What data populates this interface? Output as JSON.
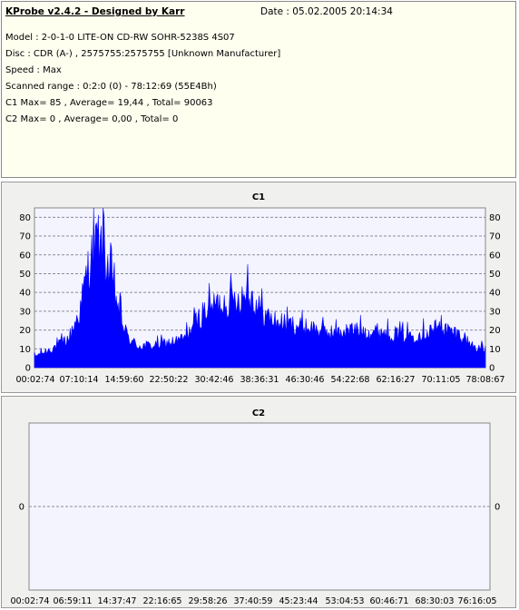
{
  "header": {
    "title": "KProbe v2.4.2 - Designed by Karr",
    "date": "Date : 05.02.2005 20:14:34",
    "lines": [
      "Model : 2-0-1-0 LITE-ON CD-RW SOHR-5238S 4S07",
      "Disc : CDR (A-) , 2575755:2575755 [Unknown Manufacturer]",
      "Speed : Max",
      "Scanned range : 0:2:0 (0) - 78:12:69 (55E4Bh)",
      "C1 Max= 85 , Average= 19,44 , Total= 90063",
      "C2 Max= 0 , Average= 0,00 , Total= 0"
    ]
  },
  "colors": {
    "series": "#0000ff",
    "title": "#000080",
    "grid": "#8a8aa0",
    "plot_bg": "#f4f4ff"
  },
  "chart_data": [
    {
      "type": "area",
      "title": "C1",
      "ylim": [
        0,
        85
      ],
      "yticks": [
        0,
        10,
        20,
        30,
        40,
        50,
        60,
        70,
        80
      ],
      "xticks": [
        "00:02:74",
        "07:10:14",
        "14:59:60",
        "22:50:22",
        "30:42:46",
        "38:36:31",
        "46:30:46",
        "54:22:68",
        "62:16:27",
        "70:11:05",
        "78:08:67"
      ],
      "x_range_minutes": [
        0.04,
        78.2
      ],
      "grid": true,
      "series": [
        {
          "x_minutes": [
            0,
            2,
            4,
            6,
            8,
            9,
            10,
            11,
            12,
            13,
            14,
            15,
            16,
            17,
            18,
            20,
            22,
            24,
            26,
            28,
            30,
            32,
            34,
            36,
            37,
            38,
            40,
            42,
            44,
            46,
            48,
            50,
            52,
            54,
            56,
            58,
            60,
            62,
            64,
            66,
            68,
            70,
            72,
            74,
            76,
            78.2
          ],
          "values": [
            6,
            9,
            12,
            16,
            32,
            50,
            62,
            70,
            64,
            52,
            40,
            28,
            18,
            14,
            12,
            12,
            13,
            14,
            16,
            25,
            33,
            35,
            37,
            39,
            42,
            37,
            29,
            25,
            24,
            23,
            22,
            20,
            19,
            20,
            21,
            20,
            20,
            19,
            18,
            18,
            20,
            22,
            20,
            18,
            12,
            10
          ],
          "peaks": [
            {
              "x_minutes": 10.3,
              "value": 85
            },
            {
              "x_minutes": 12.1,
              "value": 81
            },
            {
              "x_minutes": 37.0,
              "value": 55
            },
            {
              "x_minutes": 70.5,
              "value": 28
            }
          ]
        }
      ]
    },
    {
      "type": "line",
      "title": "C2",
      "ylim": [
        -1,
        1
      ],
      "yticks": [
        0
      ],
      "xticks": [
        "00:02:74",
        "06:59:11",
        "14:37:47",
        "22:16:65",
        "29:58:26",
        "37:40:59",
        "45:23:44",
        "53:04:53",
        "60:46:71",
        "68:30:03",
        "76:16:05"
      ],
      "grid": true,
      "series": [
        {
          "values": [
            0
          ]
        }
      ]
    }
  ]
}
